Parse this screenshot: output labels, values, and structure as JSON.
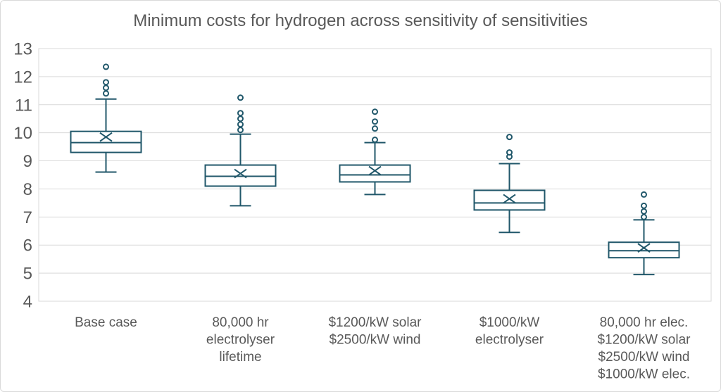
{
  "chart_data": {
    "type": "box",
    "title": "Minimum costs for hydrogen across sensitivity of sensitivities",
    "xlabel": "",
    "ylabel": "",
    "ylim": [
      4,
      13
    ],
    "yticks": [
      4,
      5,
      6,
      7,
      8,
      9,
      10,
      11,
      12,
      13
    ],
    "grid": "horizontal",
    "legend": "none",
    "categories": [
      "Base case",
      "80,000 hr electrolyser lifetime",
      "$1200/kW solar $2500/kW wind",
      "$1000/kW electrolyser",
      "80,000 hr elec. $1200/kW solar $2500/kW wind $1000/kW elec."
    ],
    "series": [
      {
        "label_lines": [
          "Base case"
        ],
        "whisker_low": 8.6,
        "q1": 9.3,
        "median": 9.65,
        "mean": 9.85,
        "q3": 10.05,
        "whisker_high": 11.2,
        "outliers": [
          11.4,
          11.6,
          11.8,
          12.35
        ]
      },
      {
        "label_lines": [
          "80,000 hr",
          "electrolyser",
          "lifetime"
        ],
        "whisker_low": 7.4,
        "q1": 8.1,
        "median": 8.45,
        "mean": 8.55,
        "q3": 8.85,
        "whisker_high": 9.95,
        "outliers": [
          10.1,
          10.3,
          10.5,
          10.7,
          11.25
        ]
      },
      {
        "label_lines": [
          "$1200/kW solar",
          "$2500/kW wind"
        ],
        "whisker_low": 7.8,
        "q1": 8.25,
        "median": 8.5,
        "mean": 8.65,
        "q3": 8.85,
        "whisker_high": 9.65,
        "outliers": [
          9.75,
          10.15,
          10.4,
          10.75
        ]
      },
      {
        "label_lines": [
          "$1000/kW",
          "electrolyser"
        ],
        "whisker_low": 6.45,
        "q1": 7.25,
        "median": 7.5,
        "mean": 7.65,
        "q3": 7.95,
        "whisker_high": 8.9,
        "outliers": [
          9.15,
          9.3,
          9.85
        ]
      },
      {
        "label_lines": [
          "80,000 hr elec.",
          "$1200/kW solar",
          "$2500/kW wind",
          "$1000/kW elec."
        ],
        "whisker_low": 4.95,
        "q1": 5.55,
        "median": 5.8,
        "mean": 5.9,
        "q3": 6.1,
        "whisker_high": 6.9,
        "outliers": [
          7.0,
          7.2,
          7.4,
          7.8
        ]
      }
    ],
    "colors": {
      "box_stroke": "#20576A",
      "box_fill": "#FFFFFF",
      "gridline": "#D9D9D9",
      "axis_text": "#595959",
      "title_text": "#595959",
      "frame_border": "#D9D9D9"
    }
  }
}
